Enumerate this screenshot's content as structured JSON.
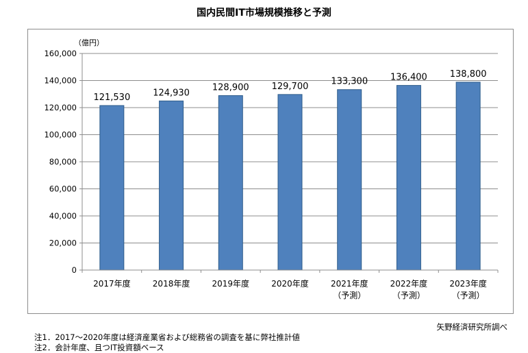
{
  "chart_data": {
    "type": "bar",
    "title": "国内民間IT市場規模推移と予測",
    "ylabel": "（億円）",
    "categories": [
      [
        "2017年度"
      ],
      [
        "2018年度"
      ],
      [
        "2019年度"
      ],
      [
        "2020年度"
      ],
      [
        "2021年度",
        "（予測）"
      ],
      [
        "2022年度",
        "（予測）"
      ],
      [
        "2023年度",
        "（予測）"
      ]
    ],
    "values": [
      121530,
      124930,
      128900,
      129700,
      133300,
      136400,
      138800
    ],
    "value_labels": [
      "121,530",
      "124,930",
      "128,900",
      "129,700",
      "133,300",
      "136,400",
      "138,800"
    ],
    "yticks": [
      0,
      20000,
      40000,
      60000,
      80000,
      100000,
      120000,
      140000,
      160000
    ],
    "ytick_labels": [
      "0",
      "20,000",
      "40,000",
      "60,000",
      "80,000",
      "100,000",
      "120,000",
      "140,000",
      "160,000"
    ],
    "ylim": [
      0,
      160000
    ],
    "grid": true,
    "bar_color": "#4f81bd",
    "bar_border_color": "#2e5c8a",
    "grid_color": "#8c8c8c"
  },
  "source": "矢野経済研究所調べ",
  "notes": [
    "注1．2017～2020年度は経済産業省および総務省の調査を基に弊社推計値",
    "注2．会計年度、且つIT投資額ベース"
  ]
}
